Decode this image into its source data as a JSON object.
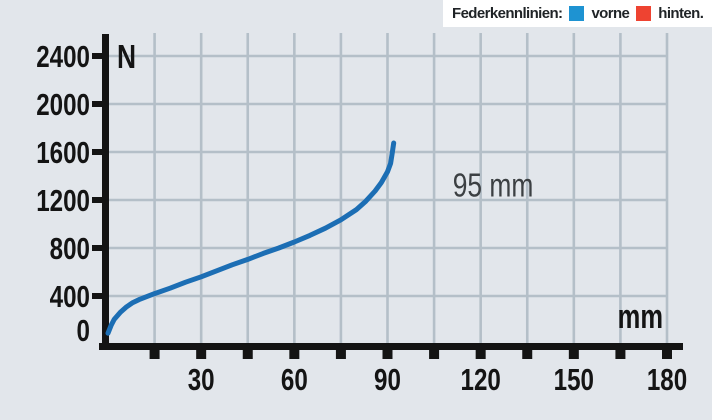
{
  "legend": {
    "title": "Federkennlinien:",
    "items": [
      {
        "label": "vorne",
        "color": "#1e93d2"
      },
      {
        "label": "hinten.",
        "color": "#ee4331"
      }
    ]
  },
  "chart_data": {
    "type": "line",
    "title": "",
    "xlabel": "mm",
    "ylabel": "N",
    "xlim": [
      0,
      190
    ],
    "ylim": [
      0,
      2500
    ],
    "xticks": [
      30,
      60,
      90,
      120,
      150,
      180
    ],
    "xticks_minor_step": 15,
    "yticks": [
      0,
      400,
      800,
      1200,
      1600,
      2000,
      2400
    ],
    "grid": true,
    "legend_position": "top-right",
    "annotation": {
      "text": "95 mm",
      "x_mm": 111,
      "y_n": 1230
    },
    "series": [
      {
        "name": "vorne",
        "color": "#1c6eb4",
        "points": [
          [
            0,
            90
          ],
          [
            1,
            155
          ],
          [
            2,
            205
          ],
          [
            4,
            265
          ],
          [
            6,
            310
          ],
          [
            8,
            345
          ],
          [
            10,
            370
          ],
          [
            15,
            420
          ],
          [
            20,
            465
          ],
          [
            25,
            515
          ],
          [
            30,
            560
          ],
          [
            35,
            610
          ],
          [
            40,
            660
          ],
          [
            45,
            705
          ],
          [
            50,
            755
          ],
          [
            55,
            800
          ],
          [
            60,
            850
          ],
          [
            65,
            905
          ],
          [
            70,
            965
          ],
          [
            75,
            1035
          ],
          [
            80,
            1120
          ],
          [
            83,
            1190
          ],
          [
            86,
            1275
          ],
          [
            88,
            1345
          ],
          [
            90,
            1435
          ],
          [
            91,
            1505
          ],
          [
            91.5,
            1590
          ],
          [
            92,
            1675
          ]
        ]
      },
      {
        "name": "hinten.",
        "color": "#ee4331",
        "points": []
      }
    ]
  },
  "colors": {
    "background": "#e2e6eb",
    "grid": "#b4bfc8",
    "axis": "#141414",
    "tick_label": "#141414",
    "annotation_text": "#3c4043",
    "legend_background": "#ffffff"
  }
}
